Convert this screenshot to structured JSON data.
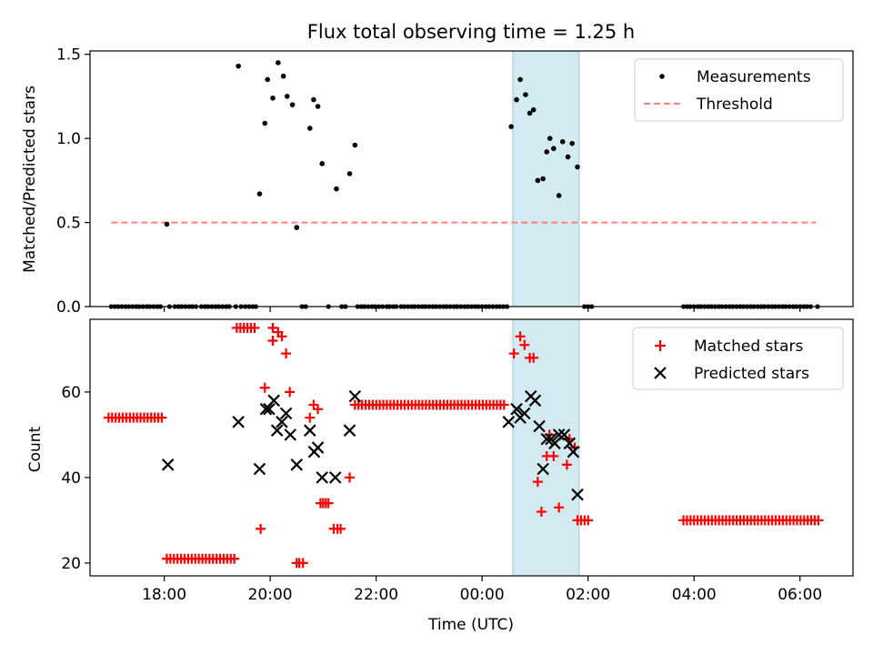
{
  "figure": {
    "title": "Flux total observing time = 1.25 h",
    "xlabel": "Time (UTC)"
  },
  "colors": {
    "shade": "#add8e6",
    "threshold": "#ff7f7f",
    "matched": "#ff0000",
    "predicted": "#000000",
    "measurements": "#000000"
  },
  "shaded_region": {
    "start_hours": 24.58,
    "end_hours": 25.83
  },
  "chart_data": [
    {
      "type": "scatter",
      "ylabel": "Matched/Predicted stars",
      "xlim": [
        16.6,
        31.0
      ],
      "ylim": [
        0.0,
        1.52
      ],
      "x_ticks": [
        {
          "value": 18,
          "label": "18:00"
        },
        {
          "value": 20,
          "label": "20:00"
        },
        {
          "value": 22,
          "label": "22:00"
        },
        {
          "value": 24,
          "label": "00:00"
        },
        {
          "value": 26,
          "label": "02:00"
        },
        {
          "value": 28,
          "label": "04:00"
        },
        {
          "value": 30,
          "label": "06:00"
        }
      ],
      "y_ticks": [
        0.0,
        0.5,
        1.0,
        1.5
      ],
      "y_tick_labels": [
        "0.0",
        "0.5",
        "1.0",
        "1.5"
      ],
      "legend": {
        "position": "top-right",
        "entries": [
          "Measurements",
          "Threshold"
        ]
      },
      "threshold": {
        "name": "Threshold",
        "value": 0.5,
        "x_range": [
          17.0,
          30.3
        ]
      },
      "series": [
        {
          "name": "Measurements",
          "points": [
            [
              18.05,
              0.49
            ],
            [
              19.4,
              1.43
            ],
            [
              19.8,
              0.67
            ],
            [
              19.9,
              1.09
            ],
            [
              19.95,
              1.35
            ],
            [
              20.05,
              1.24
            ],
            [
              20.15,
              1.45
            ],
            [
              20.25,
              1.37
            ],
            [
              20.32,
              1.25
            ],
            [
              20.42,
              1.2
            ],
            [
              20.5,
              0.47
            ],
            [
              20.75,
              1.06
            ],
            [
              20.82,
              1.23
            ],
            [
              20.9,
              1.19
            ],
            [
              20.98,
              0.85
            ],
            [
              21.25,
              0.7
            ],
            [
              21.5,
              0.79
            ],
            [
              21.6,
              0.96
            ],
            [
              24.55,
              1.07
            ],
            [
              24.65,
              1.23
            ],
            [
              24.72,
              1.35
            ],
            [
              24.82,
              1.26
            ],
            [
              24.9,
              1.15
            ],
            [
              24.97,
              1.17
            ],
            [
              25.05,
              0.75
            ],
            [
              25.15,
              0.76
            ],
            [
              25.22,
              0.92
            ],
            [
              25.28,
              1.0
            ],
            [
              25.35,
              0.94
            ],
            [
              25.45,
              0.66
            ],
            [
              25.52,
              0.98
            ],
            [
              25.62,
              0.89
            ],
            [
              25.7,
              0.97
            ],
            [
              25.8,
              0.83
            ]
          ],
          "zero_points": [
            17.0,
            17.07,
            17.13,
            17.2,
            17.27,
            17.33,
            17.4,
            17.47,
            17.53,
            17.6,
            17.67,
            17.73,
            17.8,
            17.87,
            17.93,
            18.1,
            18.2,
            18.27,
            18.33,
            18.4,
            18.47,
            18.53,
            18.6,
            18.7,
            18.77,
            18.83,
            18.9,
            18.97,
            19.03,
            19.1,
            19.17,
            19.23,
            19.35,
            19.45,
            19.53,
            19.6,
            19.67,
            19.73,
            20.6,
            20.67,
            21.1,
            21.35,
            21.42,
            21.65,
            21.72,
            21.78,
            21.85,
            21.92,
            21.98,
            22.05,
            22.12,
            22.2,
            22.25,
            22.32,
            22.38,
            22.47,
            22.53,
            22.6,
            22.67,
            22.73,
            22.8,
            22.87,
            22.93,
            23.0,
            23.07,
            23.13,
            23.2,
            23.27,
            23.33,
            23.4,
            23.47,
            23.53,
            23.6,
            23.67,
            23.73,
            23.8,
            23.87,
            23.93,
            24.0,
            24.07,
            24.13,
            24.2,
            24.27,
            24.33,
            24.4,
            24.47,
            25.93,
            26.0,
            26.07,
            27.8,
            27.87,
            27.93,
            28.0,
            28.07,
            28.13,
            28.2,
            28.27,
            28.33,
            28.4,
            28.47,
            28.53,
            28.6,
            28.67,
            28.73,
            28.8,
            28.87,
            28.93,
            29.0,
            29.07,
            29.13,
            29.2,
            29.27,
            29.33,
            29.4,
            29.47,
            29.53,
            29.6,
            29.67,
            29.73,
            29.8,
            29.87,
            29.93,
            30.0,
            30.07,
            30.13,
            30.2,
            30.33
          ]
        }
      ]
    },
    {
      "type": "scatter",
      "ylabel": "Count",
      "xlim": [
        16.6,
        31.0
      ],
      "ylim": [
        17.0,
        77.0
      ],
      "x_ticks": [
        {
          "value": 18,
          "label": "18:00"
        },
        {
          "value": 20,
          "label": "20:00"
        },
        {
          "value": 22,
          "label": "22:00"
        },
        {
          "value": 24,
          "label": "00:00"
        },
        {
          "value": 26,
          "label": "02:00"
        },
        {
          "value": 28,
          "label": "04:00"
        },
        {
          "value": 30,
          "label": "06:00"
        }
      ],
      "y_ticks": [
        20,
        40,
        60
      ],
      "y_tick_labels": [
        "20",
        "40",
        "60"
      ],
      "legend": {
        "position": "top-right",
        "entries": [
          "Matched stars",
          "Predicted stars"
        ]
      },
      "series": [
        {
          "name": "Matched stars",
          "marker": "plus",
          "segments": [
            {
              "y": 54,
              "x_from": 16.95,
              "x_to": 17.97,
              "step": 0.067
            },
            {
              "y": 21,
              "x_from": 18.05,
              "x_to": 19.33,
              "step": 0.067
            },
            {
              "y": 75,
              "x_from": 19.37,
              "x_to": 19.77,
              "step": 0.067
            },
            {
              "y": 57,
              "x_from": 21.6,
              "x_to": 24.45,
              "step": 0.067
            },
            {
              "y": 30,
              "x_from": 25.8,
              "x_to": 26.05,
              "step": 0.067
            },
            {
              "y": 30,
              "x_from": 27.8,
              "x_to": 30.35,
              "step": 0.067
            }
          ],
          "points": [
            [
              19.82,
              28
            ],
            [
              19.9,
              61
            ],
            [
              20.05,
              72
            ],
            [
              20.05,
              75
            ],
            [
              20.15,
              74
            ],
            [
              20.22,
              73
            ],
            [
              20.3,
              69
            ],
            [
              20.37,
              60
            ],
            [
              20.5,
              20
            ],
            [
              20.55,
              20
            ],
            [
              20.62,
              20
            ],
            [
              20.75,
              54
            ],
            [
              20.82,
              57
            ],
            [
              20.9,
              56
            ],
            [
              20.95,
              34
            ],
            [
              21.0,
              34
            ],
            [
              21.05,
              34
            ],
            [
              21.1,
              34
            ],
            [
              21.2,
              28
            ],
            [
              21.27,
              28
            ],
            [
              21.33,
              28
            ],
            [
              21.5,
              40
            ],
            [
              24.6,
              69
            ],
            [
              24.72,
              73
            ],
            [
              24.8,
              71
            ],
            [
              24.9,
              68
            ],
            [
              24.97,
              68
            ],
            [
              25.05,
              39
            ],
            [
              25.12,
              32
            ],
            [
              25.22,
              45
            ],
            [
              25.35,
              45
            ],
            [
              25.27,
              50
            ],
            [
              25.45,
              33
            ],
            [
              25.6,
              43
            ],
            [
              25.65,
              49
            ],
            [
              25.75,
              47
            ]
          ]
        },
        {
          "name": "Predicted stars",
          "marker": "x",
          "points": [
            [
              18.07,
              43
            ],
            [
              19.4,
              53
            ],
            [
              19.8,
              42
            ],
            [
              19.92,
              56
            ],
            [
              19.98,
              56
            ],
            [
              20.07,
              58
            ],
            [
              20.13,
              51
            ],
            [
              20.22,
              53
            ],
            [
              20.3,
              55
            ],
            [
              20.38,
              50
            ],
            [
              20.5,
              43
            ],
            [
              20.75,
              51
            ],
            [
              20.83,
              46
            ],
            [
              20.9,
              47
            ],
            [
              20.98,
              40
            ],
            [
              21.23,
              40
            ],
            [
              21.5,
              51
            ],
            [
              21.6,
              59
            ],
            [
              24.5,
              53
            ],
            [
              24.65,
              56
            ],
            [
              24.72,
              54
            ],
            [
              24.8,
              55
            ],
            [
              24.92,
              59
            ],
            [
              25.0,
              58
            ],
            [
              25.08,
              52
            ],
            [
              25.15,
              42
            ],
            [
              25.22,
              49
            ],
            [
              25.3,
              49
            ],
            [
              25.37,
              48
            ],
            [
              25.45,
              50
            ],
            [
              25.55,
              50
            ],
            [
              25.65,
              48
            ],
            [
              25.72,
              46
            ],
            [
              25.8,
              36
            ]
          ]
        }
      ]
    }
  ]
}
